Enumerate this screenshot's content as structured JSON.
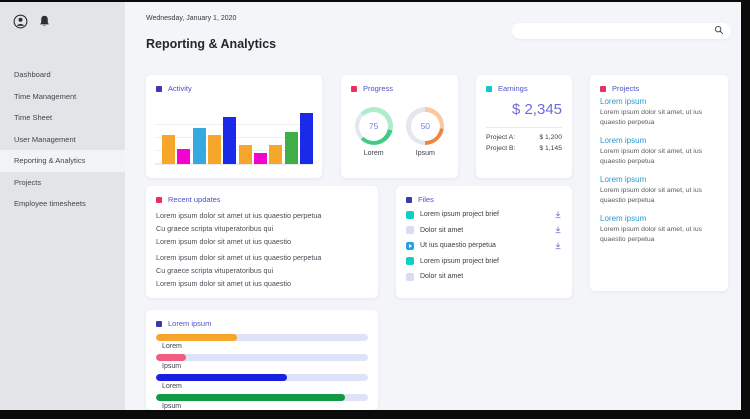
{
  "sidebar": {
    "items": [
      {
        "label": "Dashboard",
        "active": false
      },
      {
        "label": "Time Management",
        "active": false
      },
      {
        "label": "Time Sheet",
        "active": false
      },
      {
        "label": "User Management",
        "active": false
      },
      {
        "label": "Reporting & Analytics",
        "active": true
      },
      {
        "label": "Projects",
        "active": false
      },
      {
        "label": "Employee timesheets",
        "active": false
      }
    ]
  },
  "header": {
    "date": "Wednesday, January 1, 2020",
    "title": "Reporting & Analytics",
    "search_placeholder": ""
  },
  "colors": {
    "accent_indigo": "#3c38b0",
    "accent_pink": "#ee2d63",
    "accent_teal": "#0cc8c8",
    "header_label": "#4d52c8",
    "link_blue": "#2a9ad4",
    "earnings_amount": "#6f6bd8",
    "hbar_track": "#dfe3f7"
  },
  "cards": {
    "activity": {
      "title": "Activity",
      "accent": "#3c38b0"
    },
    "progress": {
      "title": "Progress",
      "accent": "#ee2d63"
    },
    "earnings": {
      "title": "Earnings",
      "accent": "#0cc8c8",
      "total": "$ 2,345",
      "rows": [
        {
          "label": "Project A:",
          "value": "$ 1,200"
        },
        {
          "label": "Project B:",
          "value": "$ 1,145"
        }
      ]
    },
    "projects": {
      "title": "Projects",
      "accent": "#ee2d63",
      "items": [
        {
          "title": "Lorem ipsum",
          "body": "Lorem ipsum dolor sit amet, ut ius quaestio perpetua"
        },
        {
          "title": "Lorem ipsum",
          "body": "Lorem ipsum dolor sit amet, ut ius quaestio perpetua"
        },
        {
          "title": "Lorem ipsum",
          "body": "Lorem ipsum dolor sit amet, ut ius quaestio perpetua"
        },
        {
          "title": "Lorem ipsum",
          "body": "Lorem ipsum dolor sit amet, ut ius quaestio perpetua"
        }
      ]
    },
    "recent_updates": {
      "title": "Recent updates",
      "accent": "#ee2d63",
      "lines": [
        "Lorem ipsum dolor sit amet ut ius quaestio perpetua",
        "Cu graece scripta vituperatoribus qui",
        "Lorem ipsum dolor sit amet ut ius quaestio",
        "Lorem ipsum dolor sit amet ut ius quaestio perpetua",
        "Cu graece scripta vituperatoribus qui",
        "Lorem ipsum dolor sit amet ut ius quaestio"
      ]
    },
    "files": {
      "title": "Files",
      "accent": "#3c38b0",
      "items": [
        {
          "icon": "doc-teal",
          "label": "Lorem ipsum project brief",
          "download": true
        },
        {
          "icon": "doc-lavender",
          "label": "Dolor sit amet",
          "download": true
        },
        {
          "icon": "video-play",
          "label": "Ut ius quaestio perpetua",
          "download": true
        },
        {
          "icon": "doc-teal",
          "label": "Lorem ipsum project brief",
          "download": false
        },
        {
          "icon": "doc-lavender",
          "label": "Dolor sit amet",
          "download": false
        }
      ]
    },
    "hbar": {
      "title": "Lorem ipsum",
      "accent": "#3c38b0"
    }
  },
  "chart_data": [
    {
      "id": "activity",
      "type": "bar",
      "title": "Activity",
      "values": [
        56,
        30,
        70,
        56,
        92,
        38,
        21,
        38,
        62,
        100
      ],
      "colors": [
        "#F5A62B",
        "#F303CE",
        "#36A9E1",
        "#F5A62B",
        "#1A2AE8",
        "#F5A62B",
        "#F303CE",
        "#F5A62B",
        "#3FAE49",
        "#1A2AE8"
      ],
      "ylim": [
        0,
        100
      ],
      "grid": true,
      "tick_labels_visible": false
    },
    {
      "id": "progress",
      "type": "pie",
      "subtype": "donut",
      "title": "Progress",
      "track_color": "#e5e7ee",
      "series": [
        {
          "label": "Lorem",
          "value": 75,
          "color_start": "#aeeccb",
          "color_end": "#3ecb85"
        },
        {
          "label": "Ipsum",
          "value": 50,
          "color_start": "#f8c9a0",
          "color_end": "#ee8440"
        }
      ]
    },
    {
      "id": "lorem-hbar",
      "type": "bar",
      "orientation": "horizontal",
      "title": "Lorem ipsum",
      "categories": [
        "Lorem",
        "Ipsum",
        "Lorem",
        "Ipsum"
      ],
      "values": [
        38,
        14,
        62,
        89
      ],
      "colors": [
        "#F5A62B",
        "#F25C7E",
        "#1A1FE0",
        "#119A43"
      ],
      "xlim": [
        0,
        100
      ],
      "track_color": "#dfe3f7"
    }
  ]
}
